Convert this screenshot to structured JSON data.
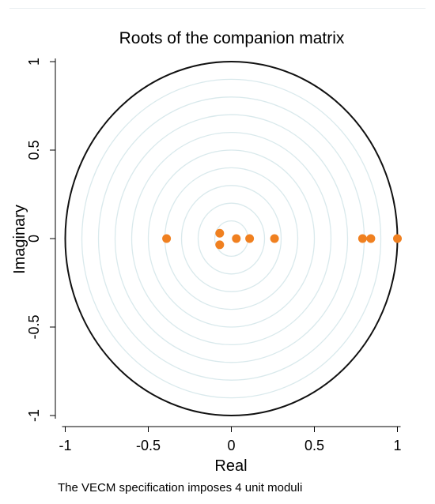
{
  "chart_data": {
    "type": "scatter",
    "title": "Roots of the companion matrix",
    "xlabel": "Real",
    "ylabel": "Imaginary",
    "note": "The VECM specification imposes 4 unit moduli",
    "xlim": [
      -1,
      1
    ],
    "ylim": [
      -1,
      1
    ],
    "xticks": [
      {
        "value": -1,
        "label": "-1"
      },
      {
        "value": -0.5,
        "label": "-0.5"
      },
      {
        "value": 0,
        "label": "0"
      },
      {
        "value": 0.5,
        "label": "0.5"
      },
      {
        "value": 1,
        "label": "1"
      }
    ],
    "yticks": [
      {
        "value": -1,
        "label": "-1"
      },
      {
        "value": -0.5,
        "label": "-0.5"
      },
      {
        "value": 0,
        "label": "0"
      },
      {
        "value": 0.5,
        "label": "0.5"
      },
      {
        "value": 1,
        "label": "1"
      }
    ],
    "unit_circle": true,
    "reference_circle_radii": [
      0.1,
      0.2,
      0.3,
      0.4,
      0.5,
      0.6,
      0.7,
      0.8,
      0.9
    ],
    "grid": false,
    "marker_color": "#f08020",
    "circle_color": "#111111",
    "reference_circle_color": "#d9e9ec",
    "points": [
      {
        "x": -0.39,
        "y": 0
      },
      {
        "x": -0.07,
        "y": 0.03
      },
      {
        "x": -0.07,
        "y": -0.035
      },
      {
        "x": 0.03,
        "y": 0
      },
      {
        "x": 0.11,
        "y": 0
      },
      {
        "x": 0.26,
        "y": 0
      },
      {
        "x": 0.79,
        "y": 0
      },
      {
        "x": 0.84,
        "y": 0
      },
      {
        "x": 1.0,
        "y": 0
      }
    ]
  }
}
